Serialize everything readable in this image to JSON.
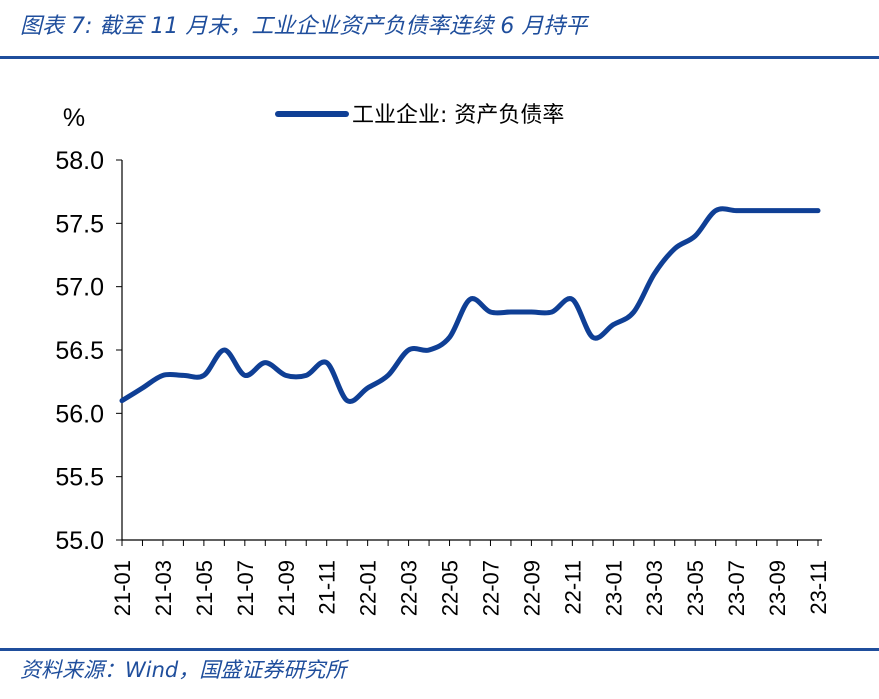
{
  "header": {
    "title": "图表 7:  截至 11 月末，工业企业资产负债率连续 6 月持平"
  },
  "footer": {
    "source": "资料来源：Wind，国盛证券研究所"
  },
  "colors": {
    "accent": "#1f4e9c",
    "series": "#0f3f95"
  },
  "chart_data": {
    "type": "line",
    "ylabel": "%",
    "ylim": [
      55.0,
      58.0
    ],
    "yticks": [
      "55.0",
      "55.5",
      "56.0",
      "56.5",
      "57.0",
      "57.5",
      "58.0"
    ],
    "x": [
      "21-01",
      "21-02",
      "21-03",
      "21-04",
      "21-05",
      "21-06",
      "21-07",
      "21-08",
      "21-09",
      "21-10",
      "21-11",
      "21-12",
      "22-01",
      "22-02",
      "22-03",
      "22-04",
      "22-05",
      "22-06",
      "22-07",
      "22-08",
      "22-09",
      "22-10",
      "22-11",
      "22-12",
      "23-01",
      "23-02",
      "23-03",
      "23-04",
      "23-05",
      "23-06",
      "23-07",
      "23-08",
      "23-09",
      "23-10",
      "23-11"
    ],
    "xticks": [
      "21-01",
      "21-03",
      "21-05",
      "21-07",
      "21-09",
      "21-11",
      "22-01",
      "22-03",
      "22-05",
      "22-07",
      "22-09",
      "22-11",
      "23-01",
      "23-03",
      "23-05",
      "23-07",
      "23-09",
      "23-11"
    ],
    "series": [
      {
        "name": "工业企业: 资产负债率",
        "values": [
          56.1,
          56.2,
          56.3,
          56.3,
          56.3,
          56.5,
          56.3,
          56.4,
          56.3,
          56.3,
          56.4,
          56.1,
          56.2,
          56.3,
          56.5,
          56.5,
          56.6,
          56.9,
          56.8,
          56.8,
          56.8,
          56.8,
          56.9,
          56.6,
          56.7,
          56.8,
          57.1,
          57.3,
          57.4,
          57.6,
          57.6,
          57.6,
          57.6,
          57.6,
          57.6
        ]
      }
    ],
    "legend": "top-center",
    "grid": false
  }
}
